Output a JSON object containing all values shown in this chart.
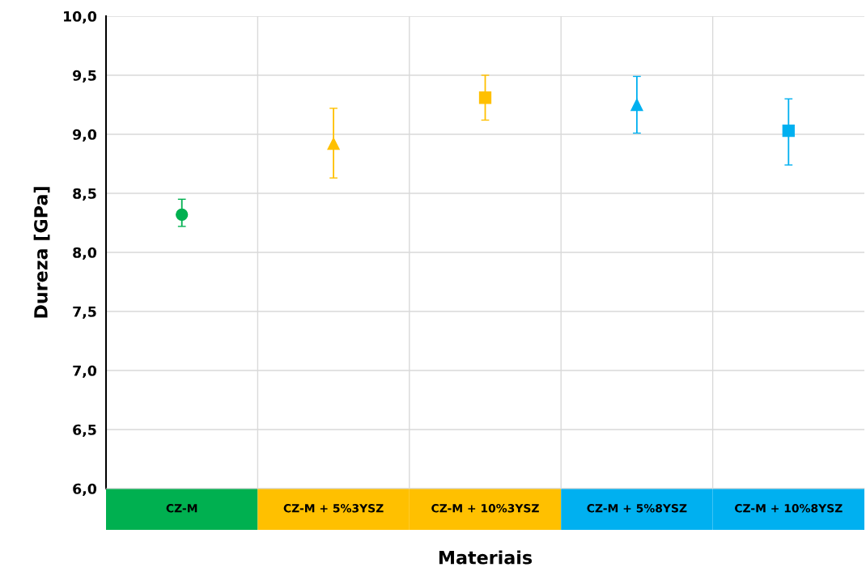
{
  "chart_data": {
    "type": "scatter",
    "xlabel": "Materiais",
    "ylabel": "Dureza [GPa]",
    "categories": [
      "CZ-M",
      "CZ-M + 5%3YSZ",
      "CZ-M + 10%3YSZ",
      "CZ-M + 5%8YSZ",
      "CZ-M + 10%8YSZ"
    ],
    "series": [
      {
        "x": [
          "CZ-M"
        ],
        "values": [
          8.32
        ],
        "errors": [
          [
            8.22,
            8.45
          ]
        ],
        "color": "#00b050",
        "marker": "circle"
      },
      {
        "x": [
          "CZ-M + 5%3YSZ"
        ],
        "values": [
          8.92
        ],
        "errors": [
          [
            8.63,
            9.22
          ]
        ],
        "color": "#ffc000",
        "marker": "triangle"
      },
      {
        "x": [
          "CZ-M + 10%3YSZ"
        ],
        "values": [
          9.31
        ],
        "errors": [
          [
            9.12,
            9.5
          ]
        ],
        "color": "#ffc000",
        "marker": "square"
      },
      {
        "x": [
          "CZ-M + 5%8YSZ"
        ],
        "values": [
          9.25
        ],
        "errors": [
          [
            9.01,
            9.49
          ]
        ],
        "color": "#00b0f0",
        "marker": "triangle"
      },
      {
        "x": [
          "CZ-M + 10%8YSZ"
        ],
        "values": [
          9.03
        ],
        "errors": [
          [
            8.74,
            9.3
          ]
        ],
        "color": "#00b0f0",
        "marker": "square"
      }
    ],
    "ylim": [
      6.0,
      10.0
    ],
    "yticks": [
      {
        "value": 6.0,
        "label": "6,0"
      },
      {
        "value": 6.5,
        "label": "6,5"
      },
      {
        "value": 7.0,
        "label": "7,0"
      },
      {
        "value": 7.5,
        "label": "7,5"
      },
      {
        "value": 8.0,
        "label": "8,0"
      },
      {
        "value": 8.5,
        "label": "8,5"
      },
      {
        "value": 9.0,
        "label": "9,0"
      },
      {
        "value": 9.5,
        "label": "9,5"
      },
      {
        "value": 10.0,
        "label": "10,0"
      }
    ],
    "grid": true
  }
}
